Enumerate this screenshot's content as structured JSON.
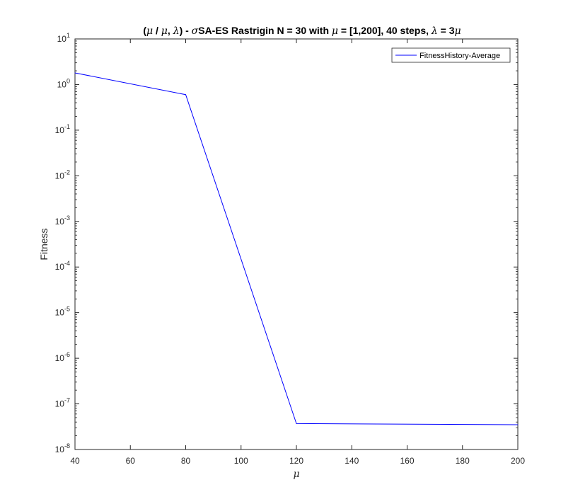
{
  "chart_data": {
    "type": "line",
    "title_parts": [
      {
        "text": "(",
        "sym": false
      },
      {
        "text": "μ",
        "sym": true
      },
      {
        "text": " / ",
        "sym": false
      },
      {
        "text": "μ",
        "sym": true
      },
      {
        "text": ", ",
        "sym": false
      },
      {
        "text": "λ",
        "sym": true
      },
      {
        "text": ") - ",
        "sym": false
      },
      {
        "text": "σ",
        "sym": true
      },
      {
        "text": "SA-ES Rastrigin N = 30 with ",
        "sym": false
      },
      {
        "text": "μ",
        "sym": true
      },
      {
        "text": " = [1,200], 40 steps, ",
        "sym": false
      },
      {
        "text": "λ",
        "sym": true
      },
      {
        "text": " = 3",
        "sym": false
      },
      {
        "text": "μ",
        "sym": true
      }
    ],
    "xlabel": "μ",
    "ylabel": "Fitness",
    "xlim": [
      40,
      200
    ],
    "ylim": [
      1e-08,
      10
    ],
    "yscale": "log",
    "xticks": [
      40,
      60,
      80,
      100,
      120,
      140,
      160,
      180,
      200
    ],
    "yticks": [
      {
        "value": 1e-08,
        "base": "10",
        "exp": "-8"
      },
      {
        "value": 1e-07,
        "base": "10",
        "exp": "-7"
      },
      {
        "value": 1e-06,
        "base": "10",
        "exp": "-6"
      },
      {
        "value": 1e-05,
        "base": "10",
        "exp": "-5"
      },
      {
        "value": 0.0001,
        "base": "10",
        "exp": "-4"
      },
      {
        "value": 0.001,
        "base": "10",
        "exp": "-3"
      },
      {
        "value": 0.01,
        "base": "10",
        "exp": "-2"
      },
      {
        "value": 0.1,
        "base": "10",
        "exp": "-1"
      },
      {
        "value": 1,
        "base": "10",
        "exp": "0"
      },
      {
        "value": 10,
        "base": "10",
        "exp": "1"
      }
    ],
    "grid": false,
    "legend_position": "top-right",
    "series": [
      {
        "name": "FitnessHistory-Average",
        "color": "#0000ff",
        "x": [
          40,
          80,
          120,
          200
        ],
        "y": [
          1.8,
          0.6,
          3.7e-08,
          3.5e-08
        ]
      }
    ]
  }
}
